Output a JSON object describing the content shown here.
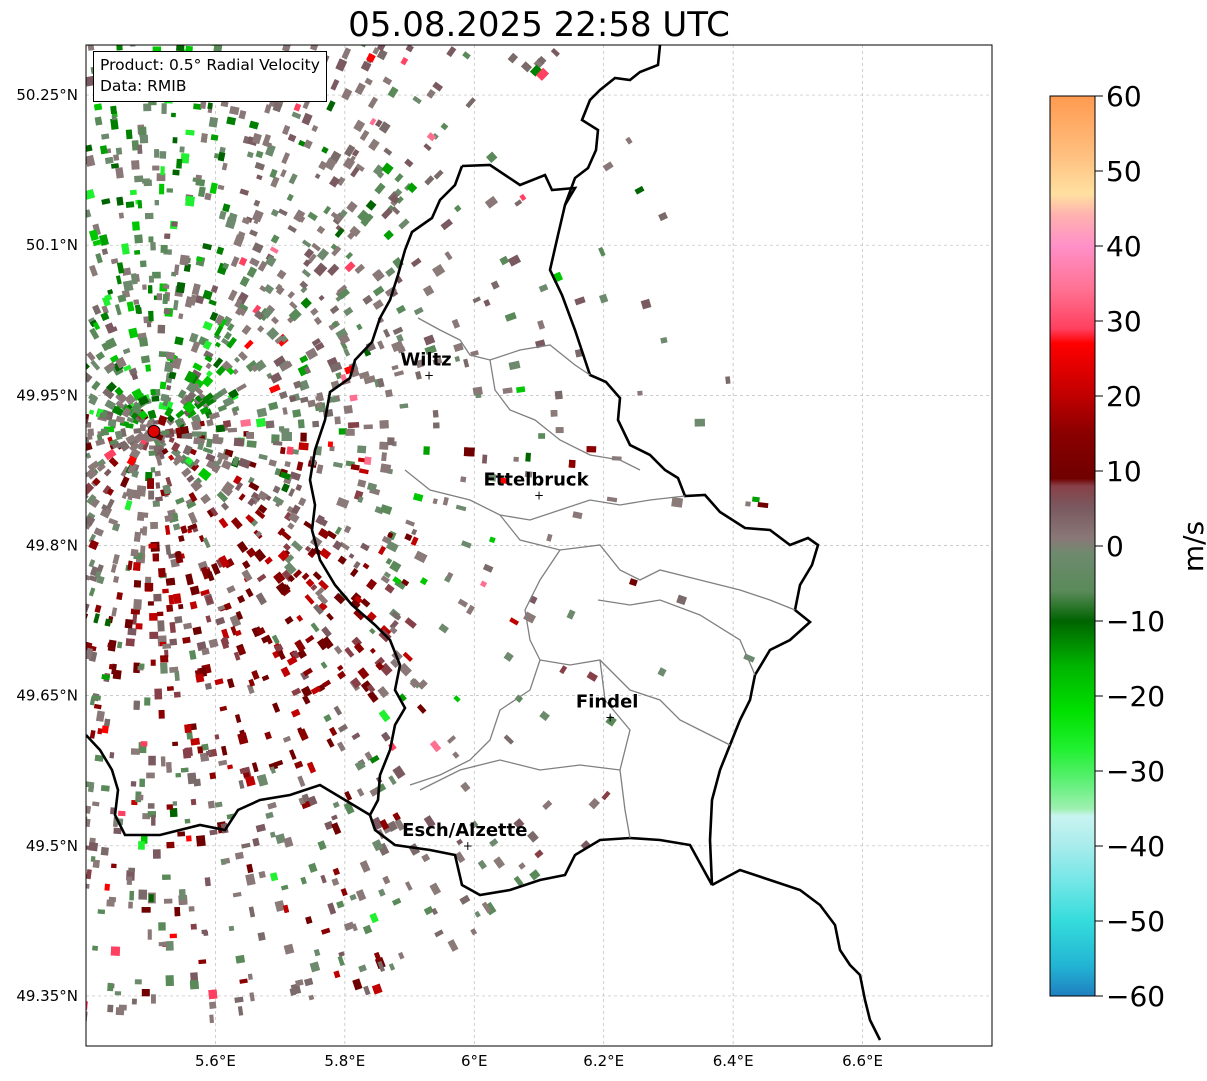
{
  "title": "05.08.2025 22:58 UTC",
  "info": {
    "product": "Product: 0.5° Radial Velocity",
    "data": "Data: RMIB"
  },
  "map": {
    "lon_range": [
      5.4,
      6.8
    ],
    "lat_range": [
      49.3,
      50.3
    ],
    "x_ticks": [
      {
        "value": 5.6,
        "label": "5.6°E"
      },
      {
        "value": 5.8,
        "label": "5.8°E"
      },
      {
        "value": 6.0,
        "label": "6°E"
      },
      {
        "value": 6.2,
        "label": "6.2°E"
      },
      {
        "value": 6.4,
        "label": "6.4°E"
      },
      {
        "value": 6.6,
        "label": "6.6°E"
      }
    ],
    "y_ticks": [
      {
        "value": 50.25,
        "label": "50.25°N"
      },
      {
        "value": 50.1,
        "label": "50.1°N"
      },
      {
        "value": 49.95,
        "label": "49.95°N"
      },
      {
        "value": 49.8,
        "label": "49.8°N"
      },
      {
        "value": 49.65,
        "label": "49.65°N"
      },
      {
        "value": 49.5,
        "label": "49.5°N"
      },
      {
        "value": 49.35,
        "label": "49.35°N"
      }
    ],
    "radar_site": {
      "lon": 5.505,
      "lat": 49.914,
      "color": "#e00000"
    },
    "cities": [
      {
        "name": "Wiltz",
        "lon": 5.93,
        "lat": 49.97
      },
      {
        "name": "Ettelbruck",
        "lon": 6.1,
        "lat": 49.85
      },
      {
        "name": "Findel",
        "lon": 6.21,
        "lat": 49.628
      },
      {
        "name": "Esch/Alzette",
        "lon": 5.99,
        "lat": 49.5
      }
    ],
    "colors": {
      "border": "#000000",
      "canton_lines": "#808080",
      "grid": "#bbbbbb"
    }
  },
  "colorbar": {
    "label": "m/s",
    "min": -60,
    "max": 60,
    "ticks": [
      {
        "value": 60,
        "label": "60"
      },
      {
        "value": 50,
        "label": "50"
      },
      {
        "value": 40,
        "label": "40"
      },
      {
        "value": 30,
        "label": "30"
      },
      {
        "value": 20,
        "label": "20"
      },
      {
        "value": 10,
        "label": "10"
      },
      {
        "value": 0,
        "label": "0"
      },
      {
        "value": -10,
        "label": "−10"
      },
      {
        "value": -20,
        "label": "−20"
      },
      {
        "value": -30,
        "label": "−30"
      },
      {
        "value": -40,
        "label": "−40"
      },
      {
        "value": -50,
        "label": "−50"
      },
      {
        "value": -60,
        "label": "−60"
      }
    ],
    "stops": [
      {
        "v": -60,
        "c": "#1f7fc0"
      },
      {
        "v": -56,
        "c": "#22b4d4"
      },
      {
        "v": -50,
        "c": "#35dcdc"
      },
      {
        "v": -45,
        "c": "#70e6e6"
      },
      {
        "v": -40,
        "c": "#a8ecec"
      },
      {
        "v": -36,
        "c": "#c8f4f0"
      },
      {
        "v": -35,
        "c": "#9ef0b0"
      },
      {
        "v": -31,
        "c": "#58f070"
      },
      {
        "v": -27,
        "c": "#20f030"
      },
      {
        "v": -22,
        "c": "#00e000"
      },
      {
        "v": -16,
        "c": "#00b400"
      },
      {
        "v": -10,
        "c": "#006400"
      },
      {
        "v": -6,
        "c": "#5a8a5a"
      },
      {
        "v": -1,
        "c": "#6e8a6e"
      },
      {
        "v": 1,
        "c": "#8a7878"
      },
      {
        "v": 5,
        "c": "#7a5a60"
      },
      {
        "v": 8,
        "c": "#884048"
      },
      {
        "v": 9,
        "c": "#700000"
      },
      {
        "v": 15,
        "c": "#8a0000"
      },
      {
        "v": 20,
        "c": "#c00000"
      },
      {
        "v": 27,
        "c": "#ff0000"
      },
      {
        "v": 29,
        "c": "#ff4060"
      },
      {
        "v": 34,
        "c": "#ff7090"
      },
      {
        "v": 40,
        "c": "#ff90c8"
      },
      {
        "v": 44,
        "c": "#ffb0b0"
      },
      {
        "v": 47,
        "c": "#ffe0a0"
      },
      {
        "v": 52,
        "c": "#ffc080"
      },
      {
        "v": 60,
        "c": "#ff9a50"
      }
    ]
  }
}
